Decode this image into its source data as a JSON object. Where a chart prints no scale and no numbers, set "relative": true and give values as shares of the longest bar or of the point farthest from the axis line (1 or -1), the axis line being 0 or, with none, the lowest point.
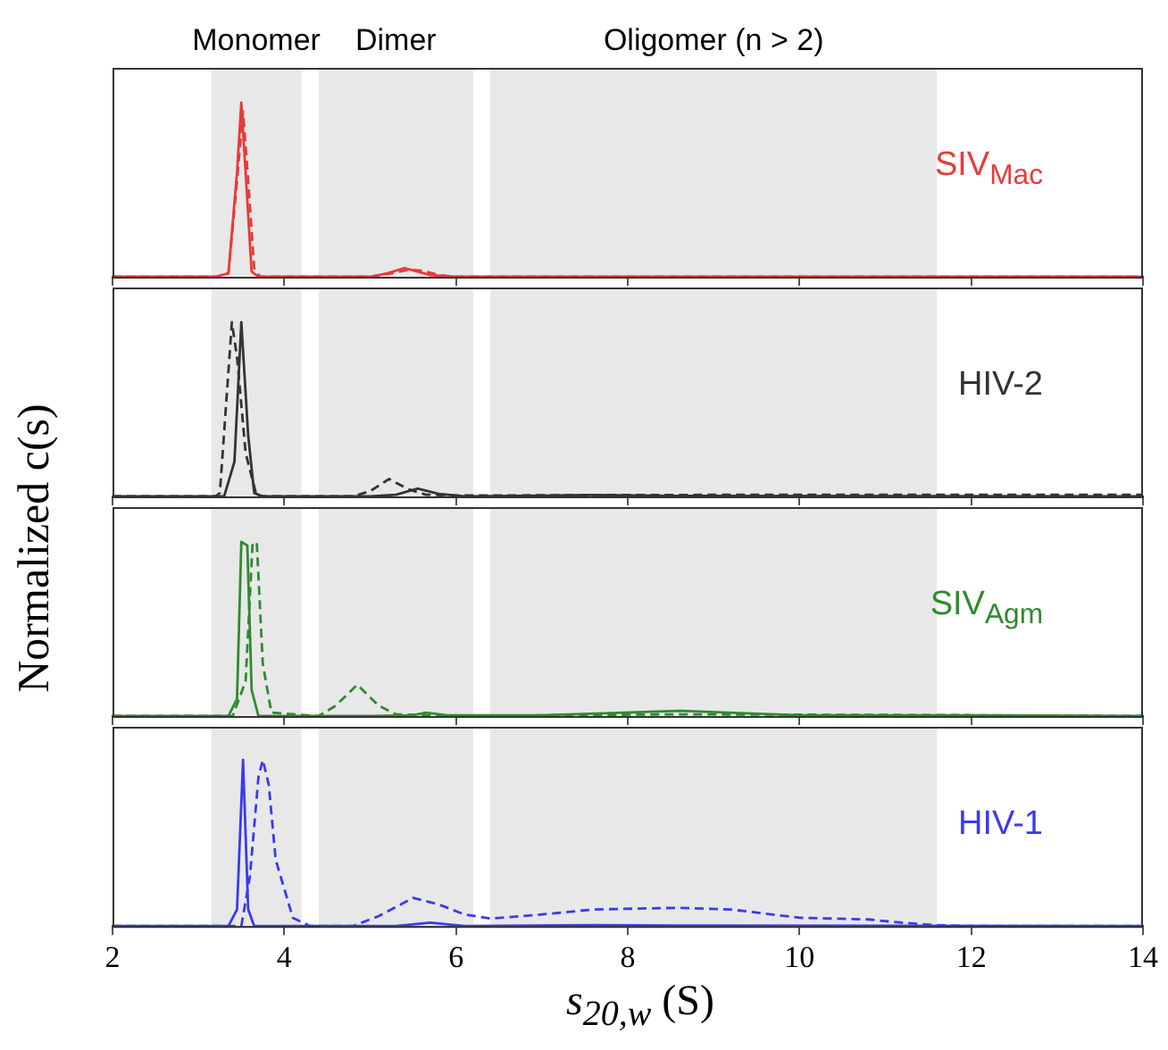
{
  "chart_data": [
    {
      "type": "line",
      "relative": true,
      "xlim": [
        2,
        14
      ],
      "xticks": [
        2,
        4,
        6,
        8,
        10,
        12,
        14
      ],
      "tick_labels": false,
      "grid": false,
      "annotations": [
        "SIV$_{Mac}$"
      ],
      "bands": [
        {
          "axis": "x",
          "from": 3.15,
          "to": 4.2,
          "label": "Monomer",
          "color": "#e8e8e8"
        },
        {
          "axis": "x",
          "from": 4.4,
          "to": 6.2,
          "label": "Dimer",
          "color": "#e8e8e8"
        },
        {
          "axis": "x",
          "from": 6.4,
          "to": 11.6,
          "label": "Oligomer (n > 2)",
          "color": "#e8e8e8"
        }
      ],
      "series": [
        {
          "color": "#e83a3a",
          "line_style": "solid",
          "x": [
            2,
            3.2,
            3.35,
            3.45,
            3.5,
            3.55,
            3.62,
            3.7,
            4,
            5,
            5.2,
            5.4,
            5.55,
            5.7,
            6,
            14
          ],
          "values": [
            0,
            0,
            0.02,
            0.6,
            1,
            0.6,
            0.03,
            0,
            0,
            0,
            0.02,
            0.05,
            0.03,
            0.01,
            0,
            0
          ]
        },
        {
          "color": "#e83a3a",
          "line_style": "dashed",
          "x": [
            2,
            3.2,
            3.35,
            3.45,
            3.52,
            3.58,
            3.65,
            3.72,
            4,
            5,
            5.25,
            5.45,
            5.6,
            5.8,
            6,
            14
          ],
          "values": [
            0,
            0,
            0.02,
            0.55,
            0.95,
            0.55,
            0.05,
            0,
            0,
            0,
            0.02,
            0.04,
            0.035,
            0.01,
            0,
            0
          ]
        }
      ]
    },
    {
      "type": "line",
      "relative": true,
      "xlim": [
        2,
        14
      ],
      "xticks": [
        2,
        4,
        6,
        8,
        10,
        12,
        14
      ],
      "tick_labels": false,
      "grid": false,
      "ylabel": "Normalized c(s)",
      "annotations": [
        "HIV-2"
      ],
      "bands": [
        {
          "axis": "x",
          "from": 3.15,
          "to": 4.2,
          "color": "#e8e8e8"
        },
        {
          "axis": "x",
          "from": 4.4,
          "to": 6.2,
          "color": "#e8e8e8"
        },
        {
          "axis": "x",
          "from": 6.4,
          "to": 11.6,
          "color": "#e8e8e8"
        }
      ],
      "series": [
        {
          "color": "#333333",
          "line_style": "solid",
          "x": [
            2,
            3.3,
            3.42,
            3.5,
            3.58,
            3.65,
            3.75,
            5,
            5.3,
            5.55,
            5.8,
            6.1,
            7,
            7.6,
            8.5,
            14
          ],
          "values": [
            0,
            0,
            0.2,
            1,
            0.35,
            0.02,
            0,
            0,
            0.01,
            0.045,
            0.015,
            0,
            0.005,
            0.008,
            0.003,
            0
          ]
        },
        {
          "color": "#333333",
          "line_style": "dashed",
          "x": [
            2,
            3.2,
            3.25,
            3.39,
            3.45,
            3.55,
            3.68,
            4.8,
            5.0,
            5.22,
            5.45,
            5.65,
            6,
            8,
            10,
            12,
            14
          ],
          "values": [
            0,
            0,
            0.02,
            1,
            0.8,
            0.25,
            0,
            0,
            0.03,
            0.1,
            0.04,
            0.01,
            0.005,
            0.008,
            0.01,
            0.01,
            0.01
          ]
        }
      ]
    },
    {
      "type": "line",
      "relative": true,
      "xlim": [
        2,
        14
      ],
      "xticks": [
        2,
        4,
        6,
        8,
        10,
        12,
        14
      ],
      "tick_labels": false,
      "grid": false,
      "annotations": [
        "SIV$_{Agm}$"
      ],
      "bands": [
        {
          "axis": "x",
          "from": 3.15,
          "to": 4.2,
          "color": "#e8e8e8"
        },
        {
          "axis": "x",
          "from": 4.4,
          "to": 6.2,
          "color": "#e8e8e8"
        },
        {
          "axis": "x",
          "from": 6.4,
          "to": 11.6,
          "color": "#e8e8e8"
        }
      ],
      "series": [
        {
          "color": "#2e8b2e",
          "line_style": "solid",
          "x": [
            2,
            3.35,
            3.45,
            3.5,
            3.57,
            3.62,
            3.7,
            5,
            5.5,
            5.65,
            5.9,
            7,
            8.6,
            10,
            12,
            14
          ],
          "values": [
            0,
            0,
            0.1,
            1,
            0.98,
            0.15,
            0,
            0,
            0.005,
            0.02,
            0.005,
            0.005,
            0.03,
            0.005,
            0.005,
            0
          ]
        },
        {
          "color": "#2e8b2e",
          "line_style": "dashed",
          "x": [
            2,
            3.4,
            3.55,
            3.63,
            3.68,
            3.75,
            3.85,
            4.4,
            4.6,
            4.85,
            5.1,
            5.3,
            6,
            8.5,
            12,
            14
          ],
          "values": [
            0,
            0,
            0.2,
            0.98,
            1,
            0.3,
            0.02,
            0,
            0.06,
            0.18,
            0.06,
            0.01,
            0,
            0.01,
            0.005,
            0
          ]
        }
      ]
    },
    {
      "type": "line",
      "relative": true,
      "xlim": [
        2,
        14
      ],
      "xticks": [
        2,
        4,
        6,
        8,
        10,
        12,
        14
      ],
      "tick_labels": "x",
      "grid": false,
      "xlabel": "s$_{20,w}$ (S)",
      "annotations": [
        "HIV-1"
      ],
      "bands": [
        {
          "axis": "x",
          "from": 3.15,
          "to": 4.2,
          "color": "#e8e8e8"
        },
        {
          "axis": "x",
          "from": 4.4,
          "to": 6.2,
          "color": "#e8e8e8"
        },
        {
          "axis": "x",
          "from": 6.4,
          "to": 11.6,
          "color": "#e8e8e8"
        }
      ],
      "series": [
        {
          "color": "#3a3aee",
          "line_style": "solid",
          "x": [
            2,
            3.35,
            3.45,
            3.52,
            3.58,
            3.65,
            3.75,
            5.3,
            5.7,
            6.1,
            7.6,
            9,
            14
          ],
          "values": [
            0,
            0,
            0.1,
            1,
            0.1,
            0,
            0,
            0,
            0.02,
            0,
            0.005,
            0.003,
            0
          ]
        },
        {
          "color": "#3a3aee",
          "line_style": "dashed",
          "x": [
            2,
            3.5,
            3.6,
            3.7,
            3.75,
            3.82,
            3.9,
            4.1,
            4.3,
            4.8,
            5.1,
            5.5,
            5.8,
            6.1,
            6.4,
            7,
            7.6,
            8.6,
            9.2,
            10,
            10.8,
            11.2,
            11.6,
            12,
            14
          ],
          "values": [
            0,
            0,
            0.3,
            0.9,
            1,
            0.85,
            0.4,
            0.05,
            0,
            0,
            0.06,
            0.17,
            0.13,
            0.07,
            0.045,
            0.07,
            0.1,
            0.11,
            0.1,
            0.05,
            0.04,
            0.02,
            0.005,
            0,
            0
          ]
        }
      ]
    }
  ]
}
